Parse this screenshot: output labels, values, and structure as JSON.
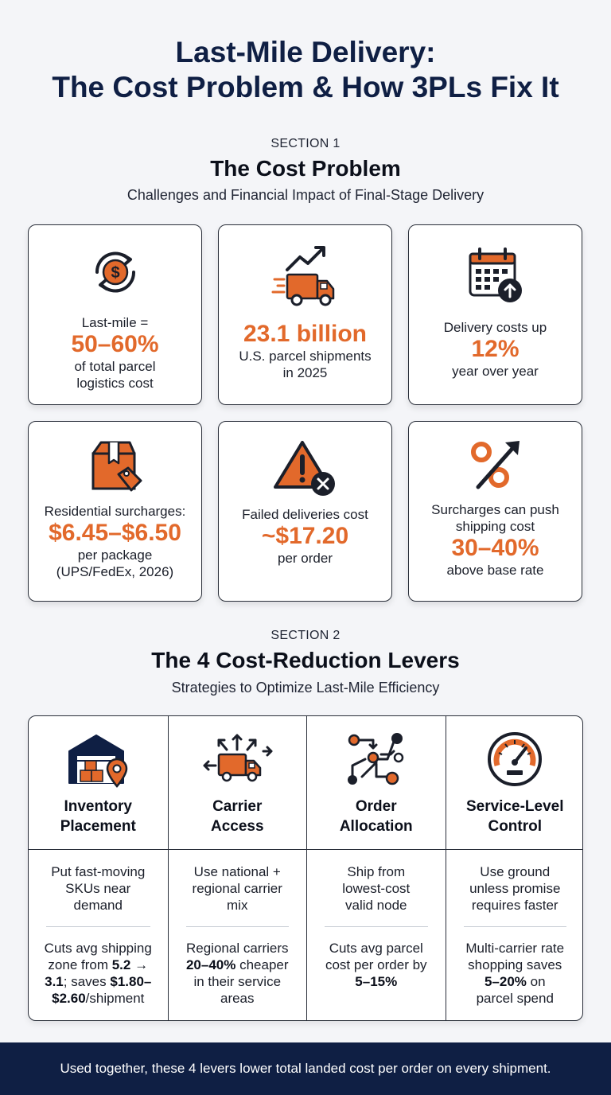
{
  "title": {
    "line1": "Last-Mile Delivery:",
    "line2": "The Cost Problem & How 3PLs Fix It"
  },
  "section1": {
    "label": "SECTION 1",
    "title": "The Cost Problem",
    "subtitle": "Challenges and Financial Impact of Final-Stage Delivery"
  },
  "cards": [
    {
      "icon": "dollar-cycle-icon",
      "pre": "Last-mile =",
      "value": "50–60%",
      "post1": "of total parcel",
      "post2": "logistics cost"
    },
    {
      "icon": "delivery-truck-trend-icon",
      "value": "23.1 billion",
      "post1": "U.S. parcel shipments",
      "post2": "in 2025"
    },
    {
      "icon": "calendar-up-icon",
      "pre": "Delivery costs up",
      "value": "12%",
      "post1": "year over year"
    },
    {
      "icon": "package-tag-icon",
      "pre": "Residential surcharges:",
      "value": "$6.45–$6.50",
      "post1": "per package",
      "post2": "(UPS/FedEx, 2026)"
    },
    {
      "icon": "warning-x-icon",
      "pre": "Failed deliveries cost",
      "value": "~$17.20",
      "post1": "per order"
    },
    {
      "icon": "percent-up-icon",
      "pre1": "Surcharges can push",
      "pre2": "shipping cost",
      "value": "30–40%",
      "post1": "above base rate"
    }
  ],
  "section2": {
    "label": "SECTION 2",
    "title": "The 4 Cost-Reduction Levers",
    "subtitle": "Strategies to Optimize Last-Mile Efficiency"
  },
  "levers": [
    {
      "icon": "warehouse-location-icon",
      "title1": "Inventory",
      "title2": "Placement",
      "desc1": "Put fast-moving",
      "desc2": "SKUs near",
      "desc3": "demand",
      "imp1": "Cuts avg shipping",
      "imp2a": "zone from ",
      "imp2b": "5.2 →",
      "imp3a": "3.1",
      "imp3b": "; saves ",
      "imp3c": "$1.80–",
      "imp4a": "$2.60",
      "imp4b": "/shipment"
    },
    {
      "icon": "truck-arrows-icon",
      "title1": "Carrier",
      "title2": "Access",
      "desc1": "Use national +",
      "desc2": "regional carrier",
      "desc3": "mix",
      "imp1": "Regional carriers",
      "imp2a": "20–40%",
      "imp2b": " cheaper",
      "imp3": "in their service",
      "imp4": "areas"
    },
    {
      "icon": "network-nodes-icon",
      "title1": "Order",
      "title2": "Allocation",
      "desc1": "Ship from",
      "desc2": "lowest-cost",
      "desc3": "valid node",
      "imp1": "Cuts avg parcel",
      "imp2": "cost per order by",
      "imp3": "5–15%"
    },
    {
      "icon": "speedometer-icon",
      "title1": "Service-Level",
      "title2": "Control",
      "desc1": "Use ground",
      "desc2": "unless promise",
      "desc3": "requires faster",
      "imp1": "Multi-carrier rate",
      "imp2": "shopping saves",
      "imp3": "5–20%",
      "imp3b": " on",
      "imp4": "parcel spend"
    }
  ],
  "footer": "Used together, these 4 levers lower total landed cost per order on every shipment.",
  "colors": {
    "navy": "#0f1f44",
    "orange": "#e2692b",
    "background": "#f4f5f8"
  }
}
